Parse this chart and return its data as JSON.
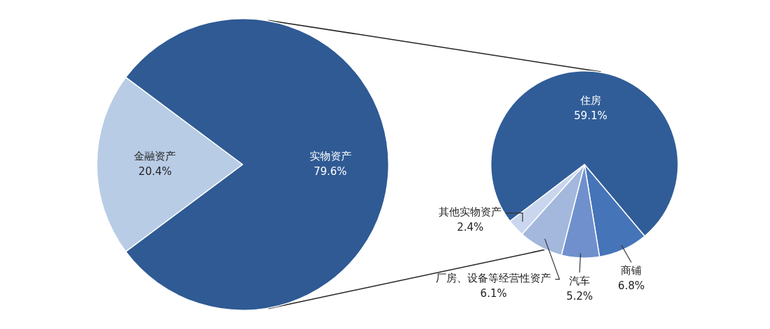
{
  "chart_data": [
    {
      "type": "pie",
      "categories": [
        "金融资产",
        "实物资产"
      ],
      "values": [
        20.4,
        79.6
      ],
      "colors": [
        "#b9cce6",
        "#2f5a94"
      ],
      "value_labels": [
        "20.4%",
        "79.6%"
      ]
    },
    {
      "type": "pie",
      "categories": [
        "住房",
        "商铺",
        "汽车",
        "厂房、设备等经营性资产",
        "其他实物资产"
      ],
      "values": [
        59.1,
        6.8,
        5.2,
        6.1,
        2.4
      ],
      "colors": [
        "#305d98",
        "#4674b8",
        "#6f90cc",
        "#a3b8dc",
        "#c9d6ee"
      ],
      "value_labels": [
        "59.1%",
        "6.8%",
        "5.2%",
        "6.1%",
        "2.4%"
      ]
    }
  ]
}
